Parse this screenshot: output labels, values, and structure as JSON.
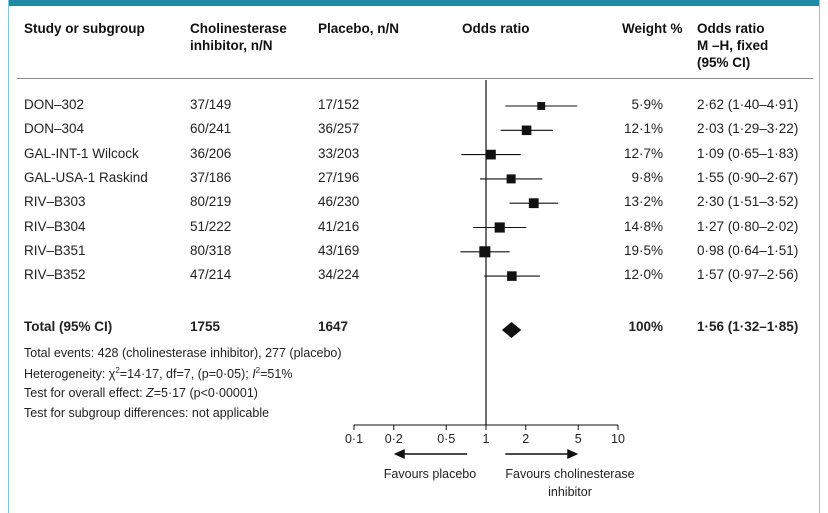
{
  "headers": {
    "study": "Study or subgroup",
    "treatment": "Cholinesterase inhibitor, n/N",
    "placebo": "Placebo, n/N",
    "odds_ratio_plot": "Odds ratio",
    "weight": "Weight %",
    "or_ci_line1": "Odds ratio",
    "or_ci_line2": "M –H, fixed",
    "or_ci_line3": "(95% CI)"
  },
  "rows": [
    {
      "study": "DON–302",
      "treatment": "37/149",
      "placebo": "17/152",
      "weight": "5·9%",
      "or_text": "2·62 (1·40–4·91)"
    },
    {
      "study": "DON–304",
      "treatment": "60/241",
      "placebo": "36/257",
      "weight": "12·1%",
      "or_text": "2·03 (1·29–3·22)"
    },
    {
      "study": "GAL-INT-1 Wilcock",
      "treatment": "36/206",
      "placebo": "33/203",
      "weight": "12·7%",
      "or_text": "1·09 (0·65–1·83)"
    },
    {
      "study": "GAL-USA-1 Raskind",
      "treatment": "37/186",
      "placebo": "27/196",
      "weight": "9·8%",
      "or_text": "1·55 (0·90–2·67)"
    },
    {
      "study": "RIV–B303",
      "treatment": "80/219",
      "placebo": "46/230",
      "weight": "13·2%",
      "or_text": "2·30 (1·51–3·52)"
    },
    {
      "study": "RIV–B304",
      "treatment": "51/222",
      "placebo": "41/216",
      "weight": "14·8%",
      "or_text": "1·27 (0·80–2·02)"
    },
    {
      "study": "RIV–B351",
      "treatment": "80/318",
      "placebo": "43/169",
      "weight": "19·5%",
      "or_text": "0·98 (0·64–1·51)"
    },
    {
      "study": "RIV–B352",
      "treatment": "47/214",
      "placebo": "34/224",
      "weight": "12·0%",
      "or_text": "1·57 (0·97–2·56)"
    }
  ],
  "total": {
    "study": "Total (95% CI)",
    "treatment": "1755",
    "placebo": "1647",
    "weight": "100%",
    "or_text": "1·56 (1·32–1·85)"
  },
  "notes": {
    "events": "Total events: 428 (cholinesterase inhibitor), 277 (placebo)",
    "heterogeneity_prefix": "Heterogeneity: χ",
    "heterogeneity_mid": "=14·17, df=7, (p=0·05); ",
    "heterogeneity_i": "I",
    "heterogeneity_suffix": "=51%",
    "sup": "2",
    "overall_prefix": "Test for overall effect: ",
    "overall_z": "Z",
    "overall_suffix": "=5·17 (p<0·00001)",
    "subgroup": "Test for subgroup differences: not applicable"
  },
  "axis": {
    "favours_left": "Favours placebo",
    "favours_right_line1": "Favours cholinesterase",
    "favours_right_line2": "inhibitor"
  },
  "colors": {
    "accent": "#1f8aa6",
    "border": "#7fc6d6",
    "marker": "#111111"
  },
  "chart_data": {
    "type": "forest",
    "scale": "log",
    "xlim": [
      0.1,
      10
    ],
    "ticks": [
      {
        "value": 0.1,
        "label": "0·1"
      },
      {
        "value": 0.2,
        "label": "0·2"
      },
      {
        "value": 0.5,
        "label": "0·5"
      },
      {
        "value": 1,
        "label": "1"
      },
      {
        "value": 2,
        "label": "2"
      },
      {
        "value": 5,
        "label": "5"
      },
      {
        "value": 10,
        "label": "10"
      }
    ],
    "reference_line": 1,
    "studies": [
      {
        "name": "DON–302",
        "or": 2.62,
        "lo": 1.4,
        "hi": 4.91,
        "weight": 5.9
      },
      {
        "name": "DON–304",
        "or": 2.03,
        "lo": 1.29,
        "hi": 3.22,
        "weight": 12.1
      },
      {
        "name": "GAL-INT-1 Wilcock",
        "or": 1.09,
        "lo": 0.65,
        "hi": 1.83,
        "weight": 12.7
      },
      {
        "name": "GAL-USA-1 Raskind",
        "or": 1.55,
        "lo": 0.9,
        "hi": 2.67,
        "weight": 9.8
      },
      {
        "name": "RIV–B303",
        "or": 2.3,
        "lo": 1.51,
        "hi": 3.52,
        "weight": 13.2
      },
      {
        "name": "RIV–B304",
        "or": 1.27,
        "lo": 0.8,
        "hi": 2.02,
        "weight": 14.8
      },
      {
        "name": "RIV–B351",
        "or": 0.98,
        "lo": 0.64,
        "hi": 1.51,
        "weight": 19.5
      },
      {
        "name": "RIV–B352",
        "or": 1.57,
        "lo": 0.97,
        "hi": 2.56,
        "weight": 12.0
      }
    ],
    "pooled": {
      "name": "Total (95% CI)",
      "or": 1.56,
      "lo": 1.32,
      "hi": 1.85
    }
  }
}
